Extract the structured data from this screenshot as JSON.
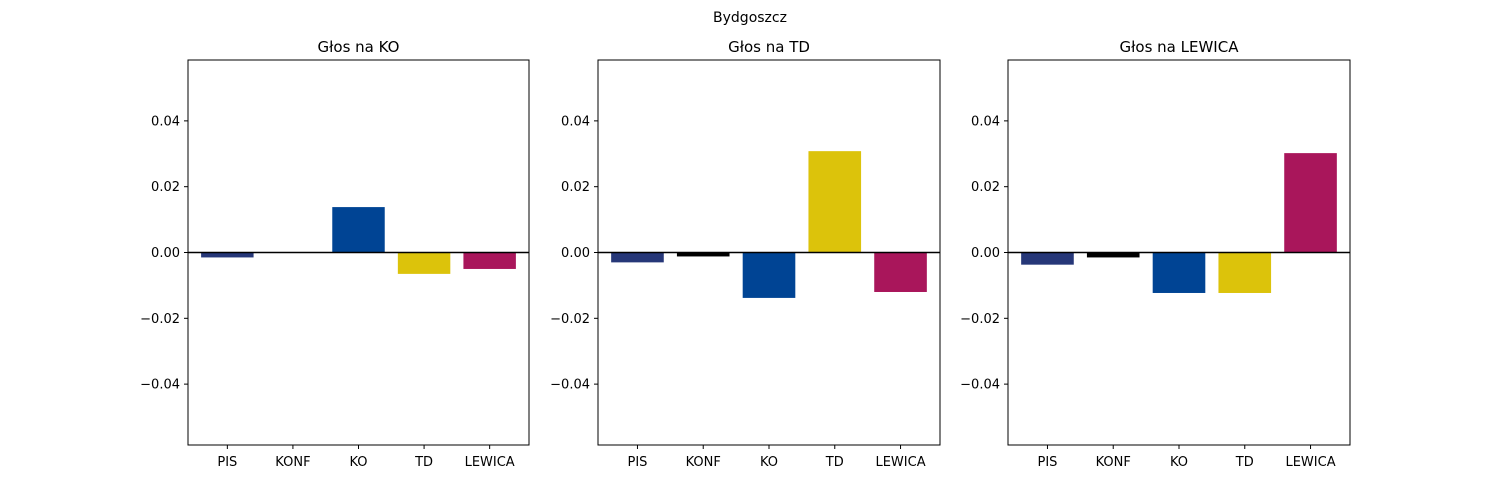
{
  "figure_title": "Bydgoszcz",
  "colors": {
    "PIS": "#263778",
    "KONF": "#000000",
    "KO": "#004494",
    "TD": "#dcc30b",
    "LEWICA": "#a9165b",
    "axis": "#000000",
    "zero_line": "#000000"
  },
  "chart_data": [
    {
      "type": "bar",
      "title": "Głos na KO",
      "categories": [
        "PIS",
        "KONF",
        "KO",
        "TD",
        "LEWICA"
      ],
      "values": [
        -0.0015,
        0.0,
        0.0138,
        -0.0065,
        -0.005
      ],
      "ylim": [
        -0.0585,
        0.0585
      ],
      "yticks": [
        -0.04,
        -0.02,
        0.0,
        0.02,
        0.04
      ],
      "ytick_labels": [
        "−0.04",
        "−0.02",
        "0.00",
        "0.02",
        "0.04"
      ],
      "xlabel": "",
      "ylabel": "",
      "grid": false,
      "zero_line": true
    },
    {
      "type": "bar",
      "title": "Głos na TD",
      "categories": [
        "PIS",
        "KONF",
        "KO",
        "TD",
        "LEWICA"
      ],
      "values": [
        -0.003,
        -0.0012,
        -0.0138,
        0.0308,
        -0.012
      ],
      "ylim": [
        -0.0585,
        0.0585
      ],
      "yticks": [
        -0.04,
        -0.02,
        0.0,
        0.02,
        0.04
      ],
      "ytick_labels": [
        "−0.04",
        "−0.02",
        "0.00",
        "0.02",
        "0.04"
      ],
      "xlabel": "",
      "ylabel": "",
      "grid": false,
      "zero_line": true
    },
    {
      "type": "bar",
      "title": "Głos na LEWICA",
      "categories": [
        "PIS",
        "KONF",
        "KO",
        "TD",
        "LEWICA"
      ],
      "values": [
        -0.0037,
        -0.0015,
        -0.0123,
        -0.0123,
        0.0302
      ],
      "ylim": [
        -0.0585,
        0.0585
      ],
      "yticks": [
        -0.04,
        -0.02,
        0.0,
        0.02,
        0.04
      ],
      "ytick_labels": [
        "−0.04",
        "−0.02",
        "0.00",
        "0.02",
        "0.04"
      ],
      "xlabel": "",
      "ylabel": "",
      "grid": false,
      "zero_line": true
    }
  ]
}
